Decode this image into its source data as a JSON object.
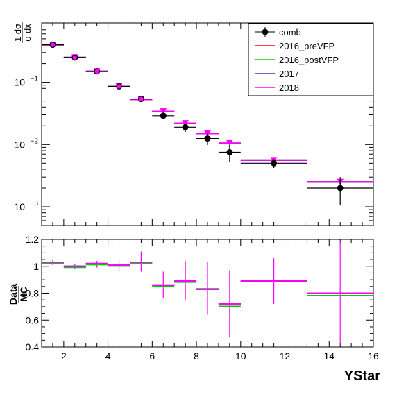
{
  "chart_data": [
    {
      "type": "scatter",
      "panel": "main",
      "title": "",
      "xlabel": "",
      "ylabel": "1/σ dσ/dx",
      "ylabel_num": "1 dσ",
      "ylabel_den": "σ dx",
      "yscale": "log",
      "xlim": [
        1,
        16
      ],
      "ylim": [
        0.0005,
        0.9
      ],
      "ytick_labels": [
        {
          "value": 0.1,
          "base": "10",
          "exp": "−1"
        },
        {
          "value": 0.01,
          "base": "10",
          "exp": "−2"
        },
        {
          "value": 0.001,
          "base": "10",
          "exp": "−3"
        }
      ],
      "legend": {
        "position": "top-right",
        "entries": [
          {
            "label": "comb",
            "color": "#000000",
            "marker": "circle"
          },
          {
            "label": "2016_preVFP",
            "color": "#ff0000",
            "marker": "line"
          },
          {
            "label": "2016_postVFP",
            "color": "#00cc00",
            "marker": "line"
          },
          {
            "label": "2017",
            "color": "#3333cc",
            "marker": "line"
          },
          {
            "label": "2018",
            "color": "#ff00ff",
            "marker": "line"
          }
        ]
      },
      "bins": [
        {
          "x0": 1,
          "x1": 2
        },
        {
          "x0": 2,
          "x1": 3
        },
        {
          "x0": 3,
          "x1": 4
        },
        {
          "x0": 4,
          "x1": 5
        },
        {
          "x0": 5,
          "x1": 6
        },
        {
          "x0": 6,
          "x1": 7
        },
        {
          "x0": 7,
          "x1": 8
        },
        {
          "x0": 8,
          "x1": 9
        },
        {
          "x0": 9,
          "x1": 10
        },
        {
          "x0": 10,
          "x1": 13
        },
        {
          "x0": 13,
          "x1": 16
        }
      ],
      "series": [
        {
          "name": "comb",
          "color": "#000000",
          "marker": "circle",
          "x": [
            1.5,
            2.5,
            3.5,
            4.5,
            5.5,
            6.5,
            7.5,
            8.5,
            9.5,
            11.5,
            14.5
          ],
          "y": [
            0.4,
            0.25,
            0.15,
            0.086,
            0.054,
            0.029,
            0.019,
            0.0125,
            0.0075,
            0.005,
            0.002
          ],
          "ylow": [
            0.38,
            0.24,
            0.145,
            0.082,
            0.051,
            0.026,
            0.016,
            0.0098,
            0.0052,
            0.0042,
            0.00105
          ],
          "yhigh": [
            0.42,
            0.26,
            0.155,
            0.09,
            0.057,
            0.032,
            0.022,
            0.015,
            0.0098,
            0.0058,
            0.003
          ]
        },
        {
          "name": "2016_preVFP",
          "color": "#ff0000",
          "marker": "triangle",
          "x": [
            1.5,
            2.5,
            3.5,
            4.5,
            5.5,
            6.5,
            7.5,
            8.5,
            9.5,
            11.5,
            14.5
          ],
          "y": [
            0.4,
            0.25,
            0.15,
            0.086,
            0.053,
            0.034,
            0.022,
            0.015,
            0.0105,
            0.0056,
            0.0025
          ]
        },
        {
          "name": "2016_postVFP",
          "color": "#00cc00",
          "marker": "triangle",
          "x": [
            1.5,
            2.5,
            3.5,
            4.5,
            5.5,
            6.5,
            7.5,
            8.5,
            9.5,
            11.5,
            14.5
          ],
          "y": [
            0.4,
            0.25,
            0.15,
            0.086,
            0.053,
            0.034,
            0.022,
            0.015,
            0.0105,
            0.0056,
            0.0025
          ]
        },
        {
          "name": "2017",
          "color": "#3333cc",
          "marker": "triangle",
          "x": [
            1.5,
            2.5,
            3.5,
            4.5,
            5.5,
            6.5,
            7.5,
            8.5,
            9.5,
            11.5,
            14.5
          ],
          "y": [
            0.4,
            0.25,
            0.15,
            0.086,
            0.053,
            0.034,
            0.022,
            0.015,
            0.0105,
            0.0056,
            0.0025
          ]
        },
        {
          "name": "2018",
          "color": "#ff00ff",
          "marker": "triangle",
          "x": [
            1.5,
            2.5,
            3.5,
            4.5,
            5.5,
            6.5,
            7.5,
            8.5,
            9.5,
            11.5,
            14.5
          ],
          "y": [
            0.4,
            0.25,
            0.15,
            0.086,
            0.053,
            0.034,
            0.022,
            0.015,
            0.0105,
            0.0056,
            0.0025
          ]
        }
      ]
    },
    {
      "type": "scatter",
      "panel": "ratio",
      "title": "",
      "xlabel": "YStar",
      "ylabel": "Data/MC",
      "ylabel_num": "Data",
      "ylabel_den": "MC",
      "xlim": [
        1,
        16
      ],
      "ylim": [
        0.4,
        1.2
      ],
      "xticks": [
        2,
        4,
        6,
        8,
        10,
        12,
        14,
        16
      ],
      "xtick_labels": [
        "2",
        "4",
        "6",
        "8",
        "10",
        "12",
        "14",
        "16"
      ],
      "yticks": [
        0.4,
        0.6,
        0.8,
        1,
        1.2
      ],
      "ytick_labels": [
        "0.4",
        "0.6",
        "0.8",
        "1",
        "1.2"
      ],
      "bins": [
        {
          "x0": 1,
          "x1": 2
        },
        {
          "x0": 2,
          "x1": 3
        },
        {
          "x0": 3,
          "x1": 4
        },
        {
          "x0": 4,
          "x1": 5
        },
        {
          "x0": 5,
          "x1": 6
        },
        {
          "x0": 6,
          "x1": 7
        },
        {
          "x0": 7,
          "x1": 8
        },
        {
          "x0": 8,
          "x1": 9
        },
        {
          "x0": 9,
          "x1": 10
        },
        {
          "x0": 10,
          "x1": 13
        },
        {
          "x0": 13,
          "x1": 16
        }
      ],
      "error_band": {
        "x": [
          1.5,
          2.5,
          3.5,
          4.5,
          5.5,
          6.5,
          7.5,
          8.5,
          9.5,
          11.5,
          14.5
        ],
        "ylow": [
          1.01,
          0.98,
          0.99,
          0.96,
          0.96,
          0.76,
          0.75,
          0.64,
          0.47,
          0.72,
          0.43
        ],
        "yhigh": [
          1.05,
          1.02,
          1.04,
          1.05,
          1.11,
          0.96,
          1.04,
          1.03,
          0.97,
          1.06,
          1.18
        ],
        "color": "#ff00ff"
      },
      "series": [
        {
          "name": "2016_preVFP",
          "color": "#ff0000",
          "y": [
            1.03,
            1.0,
            1.02,
            1.01,
            1.03,
            0.86,
            0.89,
            0.83,
            0.72,
            0.89,
            0.8
          ]
        },
        {
          "name": "2016_postVFP",
          "color": "#00cc00",
          "y": [
            1.03,
            1.0,
            1.02,
            1.01,
            1.03,
            0.86,
            0.89,
            0.84,
            0.71,
            0.9,
            0.79
          ]
        },
        {
          "name": "2017",
          "color": "#3333cc",
          "y": [
            1.03,
            1.0,
            1.02,
            1.01,
            1.03,
            0.86,
            0.89,
            0.83,
            0.72,
            0.89,
            0.8
          ]
        },
        {
          "name": "2018",
          "color": "#ff00ff",
          "y": [
            1.03,
            1.0,
            1.02,
            1.01,
            1.03,
            0.86,
            0.89,
            0.83,
            0.72,
            0.89,
            0.8
          ]
        }
      ]
    }
  ]
}
